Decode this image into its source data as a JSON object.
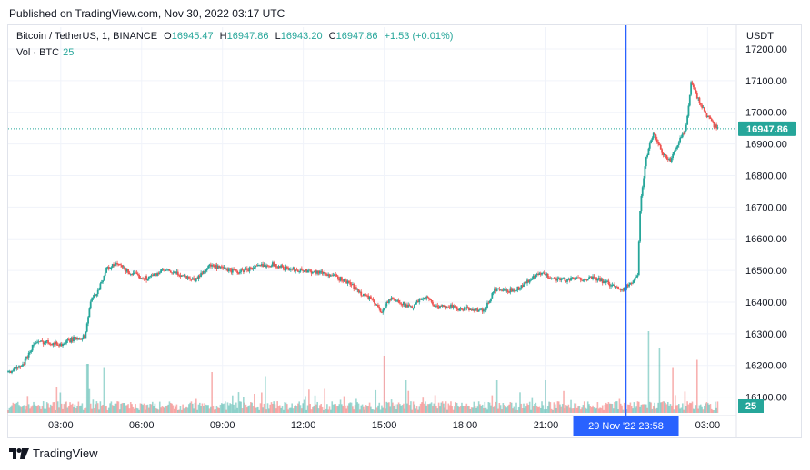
{
  "header": {
    "published": "Published on TradingView.com, Nov 30, 2022 03:17 UTC"
  },
  "legend": {
    "symbol": "Bitcoin / TetherUS, 1, BINANCE",
    "open_label": "O",
    "open": "16945.47",
    "high_label": "H",
    "high": "16947.86",
    "low_label": "L",
    "low": "16943.20",
    "close_label": "C",
    "close": "16947.86",
    "change": "+1.53 (+0.01%)",
    "vol_label": "Vol · BTC",
    "vol_value": "25"
  },
  "axis": {
    "currency": "USDT"
  },
  "footer": {
    "brand": "TradingView"
  },
  "colors": {
    "up": "#26a69a",
    "down": "#ef5350",
    "crosshair": "#2962ff",
    "grid": "#f0f3fa"
  },
  "chart_data": {
    "type": "candlestick",
    "y_ticks": [
      16100,
      16200,
      16300,
      16400,
      16500,
      16600,
      16700,
      16800,
      16900,
      17000,
      17100,
      17200
    ],
    "y_tick_labels": [
      "16100.00",
      "16200.00",
      "16300.00",
      "16400.00",
      "16500.00",
      "16600.00",
      "16700.00",
      "16800.00",
      "16900.00",
      "17000.00",
      "17100.00",
      "17200.00"
    ],
    "ylim": [
      16050,
      17240
    ],
    "x_ticks": [
      3,
      6,
      9,
      12,
      15,
      18,
      21,
      27
    ],
    "x_tick_labels": [
      "03:00",
      "06:00",
      "09:00",
      "12:00",
      "15:00",
      "18:00",
      "21:00",
      "03:00"
    ],
    "xlim": [
      1.05,
      28.0
    ],
    "crosshair_x": 23.97,
    "crosshair_label": "29 Nov '22   23:58",
    "last_price": 16947.86,
    "last_price_label": "16947.86",
    "last_volume": 25,
    "volume_label": "25",
    "price_path": [
      [
        1.05,
        16180
      ],
      [
        1.6,
        16200
      ],
      [
        2.0,
        16270
      ],
      [
        2.5,
        16275
      ],
      [
        3.0,
        16265
      ],
      [
        3.5,
        16285
      ],
      [
        3.9,
        16290
      ],
      [
        4.1,
        16400
      ],
      [
        4.4,
        16440
      ],
      [
        4.7,
        16505
      ],
      [
        5.1,
        16520
      ],
      [
        5.6,
        16490
      ],
      [
        6.2,
        16475
      ],
      [
        6.8,
        16500
      ],
      [
        7.5,
        16485
      ],
      [
        8.0,
        16470
      ],
      [
        8.5,
        16515
      ],
      [
        9.0,
        16505
      ],
      [
        9.6,
        16495
      ],
      [
        10.2,
        16510
      ],
      [
        10.8,
        16520
      ],
      [
        11.4,
        16505
      ],
      [
        12.0,
        16500
      ],
      [
        12.6,
        16495
      ],
      [
        13.2,
        16480
      ],
      [
        13.7,
        16460
      ],
      [
        14.1,
        16430
      ],
      [
        14.5,
        16410
      ],
      [
        14.9,
        16370
      ],
      [
        15.2,
        16410
      ],
      [
        15.6,
        16400
      ],
      [
        16.0,
        16380
      ],
      [
        16.5,
        16420
      ],
      [
        17.0,
        16380
      ],
      [
        17.4,
        16390
      ],
      [
        17.8,
        16375
      ],
      [
        18.2,
        16380
      ],
      [
        18.7,
        16370
      ],
      [
        19.1,
        16440
      ],
      [
        19.6,
        16435
      ],
      [
        20.0,
        16445
      ],
      [
        20.4,
        16470
      ],
      [
        20.8,
        16490
      ],
      [
        21.3,
        16475
      ],
      [
        21.8,
        16470
      ],
      [
        22.3,
        16475
      ],
      [
        22.8,
        16475
      ],
      [
        23.3,
        16460
      ],
      [
        23.8,
        16440
      ],
      [
        24.2,
        16460
      ],
      [
        24.4,
        16480
      ],
      [
        24.5,
        16700
      ],
      [
        24.7,
        16850
      ],
      [
        25.0,
        16940
      ],
      [
        25.3,
        16870
      ],
      [
        25.6,
        16845
      ],
      [
        25.9,
        16900
      ],
      [
        26.2,
        16950
      ],
      [
        26.4,
        17100
      ],
      [
        26.6,
        17050
      ],
      [
        26.9,
        17000
      ],
      [
        27.2,
        16960
      ],
      [
        27.4,
        16948
      ]
    ],
    "volume_spikes": [
      [
        4.0,
        0.6
      ],
      [
        4.6,
        0.55
      ],
      [
        8.6,
        0.5
      ],
      [
        10.6,
        0.45
      ],
      [
        15.0,
        0.7
      ],
      [
        15.8,
        0.4
      ],
      [
        19.2,
        0.4
      ],
      [
        21.0,
        0.4
      ],
      [
        24.8,
        1.0
      ],
      [
        25.2,
        0.8
      ],
      [
        25.7,
        0.55
      ],
      [
        26.6,
        0.65
      ]
    ]
  }
}
